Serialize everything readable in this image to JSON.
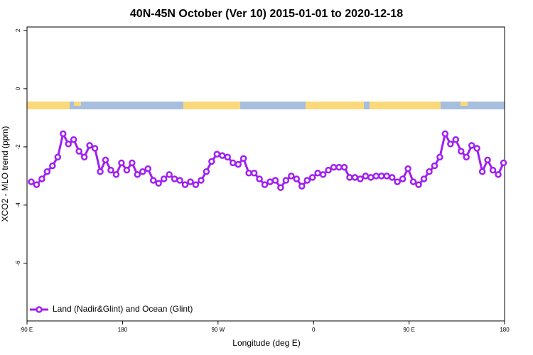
{
  "chart_data": {
    "type": "line",
    "title": "40N-45N October (Ver 10)   2015-01-01 to 2020-12-18",
    "x_label": "Longitude (deg E)",
    "y_label": "XCO2 - MLO trend (ppm)",
    "xlim": [
      90,
      540
    ],
    "ylim": [
      -7.98,
      2.12
    ],
    "xticks": [
      {
        "value": 90,
        "label": "90 E"
      },
      {
        "value": 180,
        "label": "180"
      },
      {
        "value": 270,
        "label": "90 W"
      },
      {
        "value": 360,
        "label": "0"
      },
      {
        "value": 450,
        "label": "90 E"
      },
      {
        "value": 540,
        "label": "180"
      }
    ],
    "yticks": [
      2,
      0,
      -2,
      -4,
      -6
    ],
    "legend": "bottom-left",
    "x": [
      94,
      99,
      104,
      109,
      114,
      119,
      124,
      129,
      134,
      139,
      144,
      149,
      154,
      159,
      164,
      169,
      174,
      179,
      184,
      189,
      194,
      199,
      204,
      209,
      214,
      219,
      224,
      229,
      234,
      239,
      244,
      249,
      254,
      259,
      264,
      269,
      274,
      279,
      284,
      289,
      294,
      299,
      304,
      309,
      314,
      319,
      324,
      329,
      334,
      339,
      344,
      349,
      354,
      359,
      364,
      369,
      374,
      379,
      384,
      389,
      394,
      399,
      404,
      409,
      414,
      419,
      424,
      429,
      434,
      439,
      444,
      449,
      454,
      459,
      464,
      469,
      474,
      479,
      484,
      489,
      494,
      499,
      504,
      509,
      514,
      519,
      524,
      529,
      534,
      539
    ],
    "series": [
      {
        "name": "Land (Nadir&Glint) and Ocean (Glint)",
        "color": "#a020f0",
        "values": [
          -3.2,
          -3.3,
          -3.1,
          -2.85,
          -2.65,
          -2.35,
          -1.55,
          -1.9,
          -1.75,
          -2.15,
          -2.35,
          -1.95,
          -2.05,
          -2.85,
          -2.45,
          -2.8,
          -2.95,
          -2.55,
          -2.8,
          -2.55,
          -2.95,
          -2.85,
          -2.75,
          -3.15,
          -3.25,
          -3.1,
          -2.95,
          -3.1,
          -3.15,
          -3.3,
          -3.2,
          -3.3,
          -3.15,
          -2.85,
          -2.5,
          -2.25,
          -2.3,
          -2.35,
          -2.55,
          -2.6,
          -2.4,
          -2.9,
          -2.9,
          -3.1,
          -3.3,
          -3.2,
          -3.15,
          -3.4,
          -3.15,
          -3.0,
          -3.1,
          -3.35,
          -3.15,
          -3.05,
          -2.9,
          -2.95,
          -2.8,
          -2.7,
          -2.7,
          -2.7,
          -3.05,
          -3.05,
          -3.1,
          -3.0,
          -3.05,
          -3.0,
          -3.0,
          -3.0,
          -3.05,
          -3.2,
          -3.1,
          -2.75,
          -3.2,
          -3.3,
          -3.1,
          -2.85,
          -2.65,
          -2.35,
          -1.55,
          -1.9,
          -1.75,
          -2.15,
          -2.35,
          -1.95,
          -2.05,
          -2.85,
          -2.45,
          -2.8,
          -2.95,
          -2.55
        ]
      }
    ]
  }
}
